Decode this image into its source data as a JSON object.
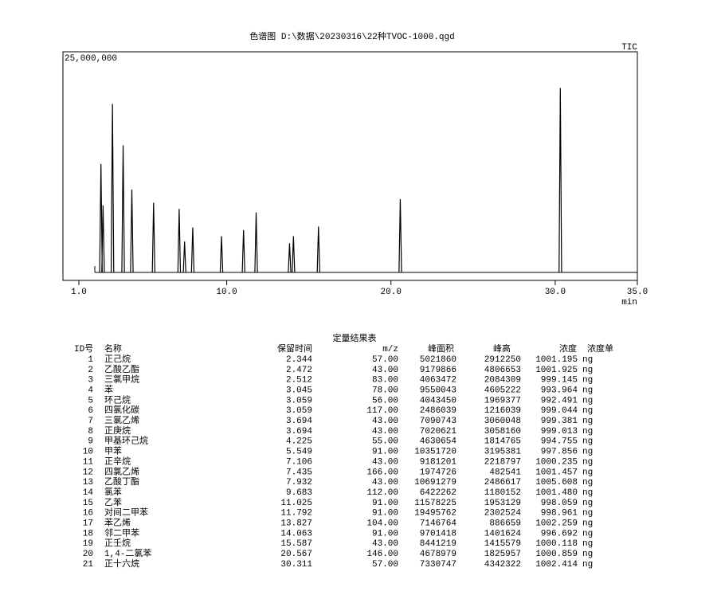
{
  "chart_data": {
    "type": "chromatogram",
    "title": "色谱图  D:\\数据\\20230316\\22种TVOC-1000.qgd",
    "trace_label": "TIC",
    "x_label": "min",
    "x": [
      2.344,
      2.472,
      3.045,
      3.694,
      4.225,
      5.549,
      7.106,
      7.435,
      7.932,
      9.683,
      11.025,
      11.792,
      13.827,
      14.063,
      15.587,
      20.567,
      30.311
    ],
    "values": [
      12300000,
      7600000,
      19100000,
      14400000,
      9400000,
      7900000,
      7200000,
      3500000,
      5100000,
      4100000,
      4800000,
      6800000,
      3300000,
      4100000,
      5200000,
      8300000,
      20900000
    ],
    "color": "#000000",
    "xlim": [
      1,
      35
    ],
    "xticks": [
      {
        "value": 1,
        "label": "1.0"
      },
      {
        "value": 10,
        "label": "10.0"
      },
      {
        "value": 20,
        "label": "20.0"
      },
      {
        "value": 30,
        "label": "30.0"
      },
      {
        "value": 35,
        "label": "35.0"
      }
    ],
    "ylim": [
      0,
      25000000
    ],
    "yticks": [
      {
        "value": 25000000,
        "label": "25,000,000"
      }
    ]
  },
  "table": {
    "title": "定量结果表",
    "header": [
      "ID号",
      "名称",
      "保留时间",
      "m/z",
      "峰面积",
      "峰高",
      "浓度",
      "浓度单"
    ],
    "rows": [
      [
        "1",
        "正己烷",
        "2.344",
        "57.00",
        "5021860",
        "2912250",
        "1001.195",
        "ng"
      ],
      [
        "2",
        "乙酸乙酯",
        "2.472",
        "43.00",
        "9179866",
        "4806653",
        "1001.925",
        "ng"
      ],
      [
        "3",
        "三氯甲烷",
        "2.512",
        "83.00",
        "4063472",
        "2084309",
        "999.145",
        "ng"
      ],
      [
        "4",
        "苯",
        "3.045",
        "78.00",
        "9550043",
        "4605222",
        "993.964",
        "ng"
      ],
      [
        "5",
        "环己烷",
        "3.059",
        "56.00",
        "4043450",
        "1969377",
        "992.491",
        "ng"
      ],
      [
        "6",
        "四氯化碳",
        "3.059",
        "117.00",
        "2486039",
        "1216039",
        "999.044",
        "ng"
      ],
      [
        "7",
        "三氯乙烯",
        "3.694",
        "43.00",
        "7090743",
        "3060048",
        "999.381",
        "ng"
      ],
      [
        "8",
        "正庚烷",
        "3.694",
        "43.00",
        "7020621",
        "3058160",
        "999.013",
        "ng"
      ],
      [
        "9",
        "甲基环己烷",
        "4.225",
        "55.00",
        "4630654",
        "1814765",
        "994.755",
        "ng"
      ],
      [
        "10",
        "甲苯",
        "5.549",
        "91.00",
        "10351720",
        "3195381",
        "997.856",
        "ng"
      ],
      [
        "11",
        "正辛烷",
        "7.106",
        "43.00",
        "9181201",
        "2218797",
        "1000.235",
        "ng"
      ],
      [
        "12",
        "四氯乙烯",
        "7.435",
        "166.00",
        "1974726",
        "482541",
        "1001.457",
        "ng"
      ],
      [
        "13",
        "乙酸丁酯",
        "7.932",
        "43.00",
        "10691279",
        "2486617",
        "1005.608",
        "ng"
      ],
      [
        "14",
        "氯苯",
        "9.683",
        "112.00",
        "6422262",
        "1180152",
        "1001.480",
        "ng"
      ],
      [
        "15",
        "乙苯",
        "11.025",
        "91.00",
        "11578225",
        "1953129",
        "998.059",
        "ng"
      ],
      [
        "16",
        "对间二甲苯",
        "11.792",
        "91.00",
        "19495762",
        "2302524",
        "998.961",
        "ng"
      ],
      [
        "17",
        "苯乙烯",
        "13.827",
        "104.00",
        "7146764",
        "886659",
        "1002.259",
        "ng"
      ],
      [
        "18",
        "邻二甲苯",
        "14.063",
        "91.00",
        "9701418",
        "1401624",
        "996.692",
        "ng"
      ],
      [
        "19",
        "正壬烷",
        "15.587",
        "43.00",
        "8441219",
        "1415579",
        "1000.118",
        "ng"
      ],
      [
        "20",
        "1,4-二氯苯",
        "20.567",
        "146.00",
        "4678979",
        "1825957",
        "1000.859",
        "ng"
      ],
      [
        "21",
        "正十六烷",
        "30.311",
        "57.00",
        "7330747",
        "4342322",
        "1002.414",
        "ng"
      ]
    ]
  }
}
